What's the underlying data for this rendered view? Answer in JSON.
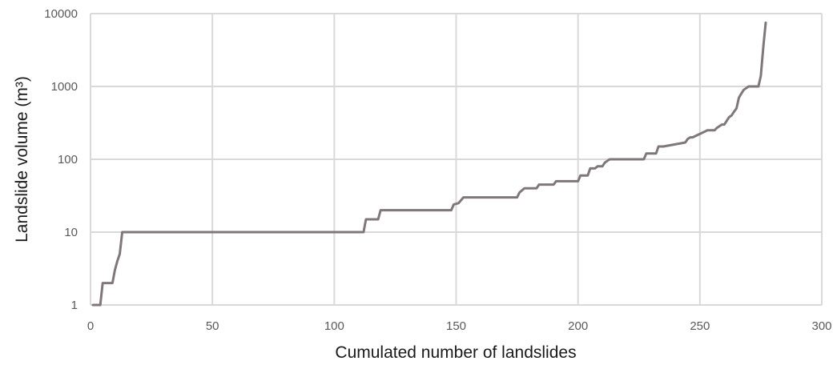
{
  "chart_data": {
    "type": "line",
    "title": "",
    "xlabel": "Cumulated number of landslides",
    "ylabel": "Landslide volume (m³)",
    "xlim": [
      0,
      300
    ],
    "ylim": [
      1,
      10000
    ],
    "y_scale": "log",
    "x_ticks": [
      0,
      50,
      100,
      150,
      200,
      250,
      300
    ],
    "x_tick_labels": [
      "0",
      "50",
      "100",
      "150",
      "200",
      "250",
      "300"
    ],
    "y_ticks": [
      1,
      10,
      100,
      1000,
      10000
    ],
    "y_tick_labels": [
      "1",
      "10",
      "100",
      "1000",
      "10000"
    ],
    "grid": true,
    "line_color": "#7f7779",
    "grid_color": "#d9d9d9",
    "series": [
      {
        "x": [
          1,
          4,
          5,
          9,
          10,
          11,
          12,
          13,
          112,
          113,
          118,
          119,
          148,
          149,
          151,
          153,
          175,
          176,
          178,
          183,
          184,
          190,
          191,
          200,
          201,
          204,
          205,
          207,
          208,
          210,
          211,
          212,
          213,
          227,
          228,
          232,
          233,
          235,
          244,
          245,
          246,
          247,
          252,
          253,
          256,
          257,
          259,
          260,
          262,
          263,
          264,
          265,
          266,
          267,
          268,
          270,
          271,
          274,
          275,
          276,
          277
        ],
        "y": [
          1,
          1,
          2,
          2,
          3,
          4,
          5,
          10,
          10,
          15,
          15,
          20,
          20,
          24,
          25,
          30,
          30,
          35,
          40,
          40,
          45,
          45,
          50,
          50,
          60,
          60,
          75,
          75,
          80,
          80,
          90,
          95,
          100,
          100,
          120,
          120,
          150,
          150,
          170,
          190,
          200,
          200,
          240,
          250,
          250,
          270,
          300,
          300,
          380,
          400,
          450,
          500,
          700,
          800,
          900,
          1000,
          1000,
          1000,
          1400,
          3500,
          7500
        ]
      }
    ]
  }
}
